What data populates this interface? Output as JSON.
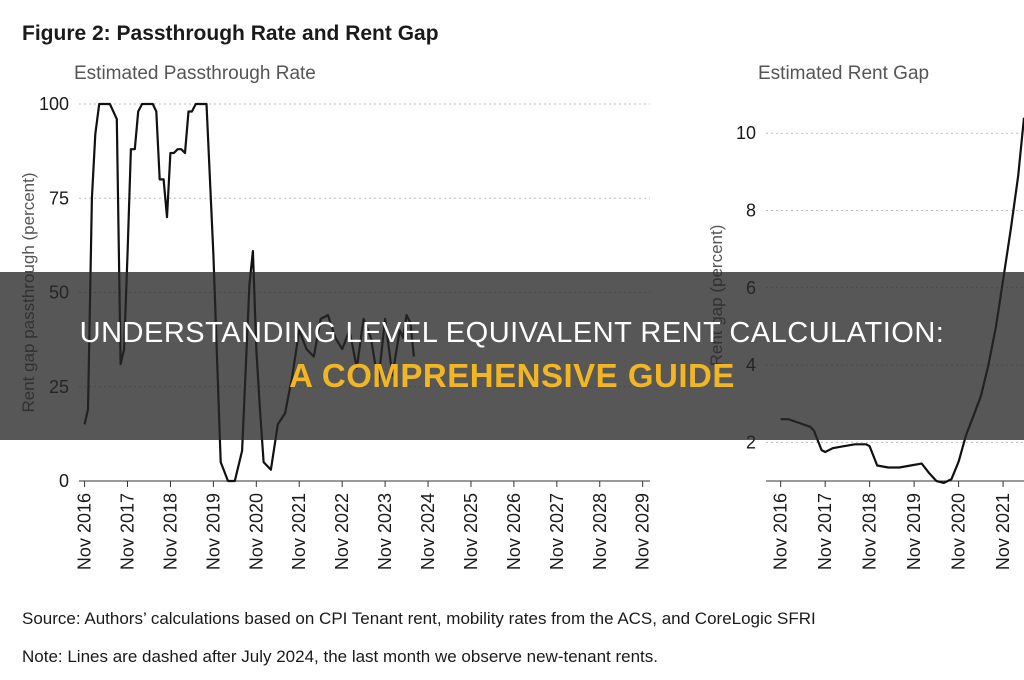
{
  "figure_title": "Figure 2: Passthrough Rate and Rent Gap",
  "source_note": "Source: Authors’ calculations based on CPI Tenant rent, mobility rates from the ACS, and CoreLogic SFRI",
  "dash_note": "Note: Lines are dashed after July 2024, the last month we observe new-tenant rents.",
  "overlay": {
    "line1": "UNDERSTANDING LEVEL EQUIVALENT RENT CALCULATION:",
    "line2": "A COMPREHENSIVE GUIDE"
  },
  "colors": {
    "line": "#111111",
    "grid": "#bbbbbb",
    "overlay_accent": "#f2b625"
  },
  "chart_data": [
    {
      "type": "line",
      "title": "Estimated Passthrough Rate",
      "ylabel": "Rent gap passthrough (percent)",
      "xlabel": "",
      "ylim": [
        0,
        100
      ],
      "yticks": [
        "0",
        "25",
        "50",
        "75",
        "100"
      ],
      "xlim": [
        2016.7,
        2030.0
      ],
      "xticks": [
        {
          "v": 2016.83,
          "label": "Nov 2016"
        },
        {
          "v": 2017.83,
          "label": "Nov 2017"
        },
        {
          "v": 2018.83,
          "label": "Nov 2018"
        },
        {
          "v": 2019.83,
          "label": "Nov 2019"
        },
        {
          "v": 2020.83,
          "label": "Nov 2020"
        },
        {
          "v": 2021.83,
          "label": "Nov 2021"
        },
        {
          "v": 2022.83,
          "label": "Nov 2022"
        },
        {
          "v": 2023.83,
          "label": "Nov 2023"
        },
        {
          "v": 2024.83,
          "label": "Nov 2024"
        },
        {
          "v": 2025.83,
          "label": "Nov 2025"
        },
        {
          "v": 2026.83,
          "label": "Nov 2026"
        },
        {
          "v": 2027.83,
          "label": "Nov 2027"
        },
        {
          "v": 2028.83,
          "label": "Nov 2028"
        },
        {
          "v": 2029.83,
          "label": "Nov 2029"
        }
      ],
      "grid": "dotted-horizontal",
      "series": [
        {
          "x": [
            2016.83,
            2016.91,
            2017.0,
            2017.08,
            2017.17,
            2017.25,
            2017.33,
            2017.42,
            2017.58,
            2017.67,
            2017.75,
            2017.83,
            2017.91,
            2018.0,
            2018.08,
            2018.17,
            2018.25,
            2018.33,
            2018.42,
            2018.5,
            2018.58,
            2018.67,
            2018.75,
            2018.83,
            2018.91,
            2019.0,
            2019.08,
            2019.17,
            2019.25,
            2019.33,
            2019.42,
            2019.5,
            2019.58,
            2019.67,
            2019.83,
            2020.0,
            2020.17,
            2020.25,
            2020.33,
            2020.5,
            2020.67,
            2020.75,
            2020.83,
            2020.91,
            2021.0,
            2021.17,
            2021.33,
            2021.5,
            2021.67,
            2021.83,
            2022.0,
            2022.17,
            2022.33,
            2022.5,
            2022.67,
            2022.83,
            2023.0,
            2023.17,
            2023.33,
            2023.5,
            2023.67,
            2023.83,
            2024.0,
            2024.17,
            2024.25,
            2024.33,
            2024.42,
            2024.5
          ],
          "y": [
            15,
            19,
            75,
            92,
            100,
            100,
            100,
            100,
            96,
            31,
            35,
            60,
            88,
            88,
            98,
            100,
            100,
            100,
            100,
            98,
            80,
            80,
            70,
            87,
            87,
            88,
            88,
            87,
            98,
            98,
            100,
            100,
            100,
            100,
            60,
            5,
            0,
            0,
            0,
            8,
            52,
            61,
            35,
            20,
            5,
            3,
            15,
            18,
            28,
            40,
            35,
            33,
            43,
            44,
            38,
            35,
            40,
            30,
            43,
            38,
            26,
            43,
            28,
            40,
            38,
            44,
            42,
            33
          ]
        }
      ]
    },
    {
      "type": "line",
      "title": "Estimated Rent Gap",
      "ylabel": "Rent gap (percent)",
      "xlabel": "",
      "ylim": [
        1,
        10.6
      ],
      "yticks": [
        "2",
        "4",
        "6",
        "8",
        "10"
      ],
      "xlim": [
        2016.5,
        2022.3
      ],
      "xticks": [
        {
          "v": 2016.83,
          "label": "Nov 2016"
        },
        {
          "v": 2017.83,
          "label": "Nov 2017"
        },
        {
          "v": 2018.83,
          "label": "Nov 2018"
        },
        {
          "v": 2019.83,
          "label": "Nov 2019"
        },
        {
          "v": 2020.83,
          "label": "Nov 2020"
        },
        {
          "v": 2021.83,
          "label": "Nov 2021"
        }
      ],
      "grid": "dotted-horizontal",
      "series": [
        {
          "x": [
            2016.83,
            2017.0,
            2017.25,
            2017.5,
            2017.58,
            2017.75,
            2017.83,
            2018.0,
            2018.25,
            2018.5,
            2018.75,
            2018.83,
            2019.0,
            2019.25,
            2019.5,
            2019.75,
            2020.0,
            2020.17,
            2020.33,
            2020.5,
            2020.67,
            2020.83,
            2021.0,
            2021.17,
            2021.33,
            2021.5,
            2021.67,
            2021.83,
            2022.0,
            2022.17,
            2022.3
          ],
          "y": [
            2.6,
            2.6,
            2.5,
            2.4,
            2.3,
            1.8,
            1.75,
            1.85,
            1.9,
            1.95,
            1.95,
            1.9,
            1.4,
            1.35,
            1.35,
            1.4,
            1.45,
            1.2,
            1.0,
            0.95,
            1.05,
            1.5,
            2.2,
            2.7,
            3.2,
            4.0,
            5.0,
            6.2,
            7.5,
            8.9,
            10.4
          ]
        }
      ]
    }
  ]
}
